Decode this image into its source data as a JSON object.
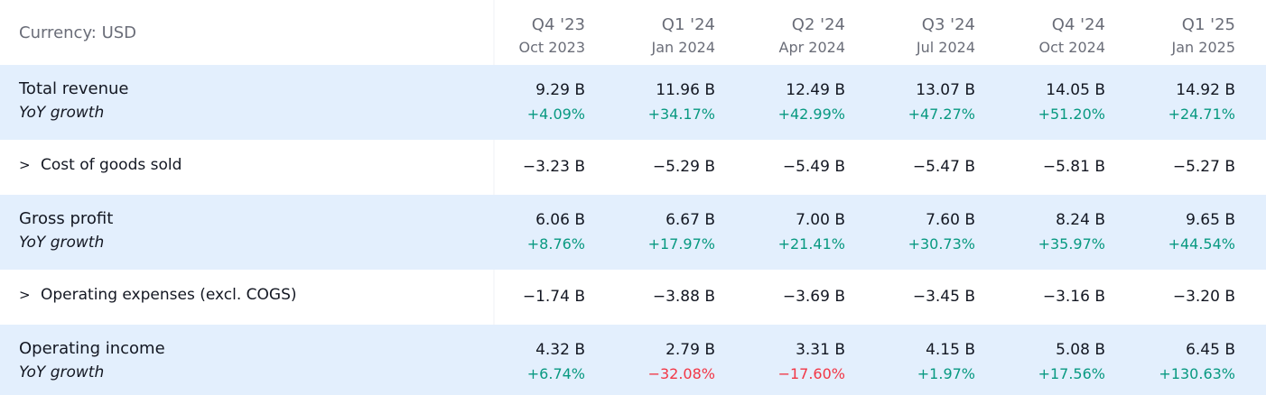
{
  "currency_label": "Currency: USD",
  "colors": {
    "positive": "#089981",
    "negative": "#f23645",
    "highlight_row": "#e3effd",
    "muted_text": "#6a6d78"
  },
  "columns": [
    {
      "quarter": "Q4 '23",
      "date": "Oct 2023"
    },
    {
      "quarter": "Q1 '24",
      "date": "Jan 2024"
    },
    {
      "quarter": "Q2 '24",
      "date": "Apr 2024"
    },
    {
      "quarter": "Q3 '24",
      "date": "Jul 2024"
    },
    {
      "quarter": "Q4 '24",
      "date": "Oct 2024"
    },
    {
      "quarter": "Q1 '25",
      "date": "Jan 2025"
    }
  ],
  "rows": [
    {
      "label": "Total revenue",
      "sub_label": "YoY growth",
      "values": [
        "9.29 B",
        "11.96 B",
        "12.49 B",
        "13.07 B",
        "14.05 B",
        "14.92 B"
      ],
      "growth": [
        "+4.09%",
        "+34.17%",
        "+42.99%",
        "+47.27%",
        "+51.20%",
        "+24.71%"
      ]
    },
    {
      "label": "Cost of goods sold",
      "expand_icon": "chevron-right-icon",
      "values": [
        "−3.23 B",
        "−5.29 B",
        "−5.49 B",
        "−5.47 B",
        "−5.81 B",
        "−5.27 B"
      ]
    },
    {
      "label": "Gross profit",
      "sub_label": "YoY growth",
      "values": [
        "6.06 B",
        "6.67 B",
        "7.00 B",
        "7.60 B",
        "8.24 B",
        "9.65 B"
      ],
      "growth": [
        "+8.76%",
        "+17.97%",
        "+21.41%",
        "+30.73%",
        "+35.97%",
        "+44.54%"
      ]
    },
    {
      "label": "Operating expenses (excl. COGS)",
      "expand_icon": "chevron-right-icon",
      "values": [
        "−1.74 B",
        "−3.88 B",
        "−3.69 B",
        "−3.45 B",
        "−3.16 B",
        "−3.20 B"
      ]
    },
    {
      "label": "Operating income",
      "sub_label": "YoY growth",
      "values": [
        "4.32 B",
        "2.79 B",
        "3.31 B",
        "4.15 B",
        "5.08 B",
        "6.45 B"
      ],
      "growth": [
        "+6.74%",
        "−32.08%",
        "−17.60%",
        "+1.97%",
        "+17.56%",
        "+130.63%"
      ]
    }
  ]
}
